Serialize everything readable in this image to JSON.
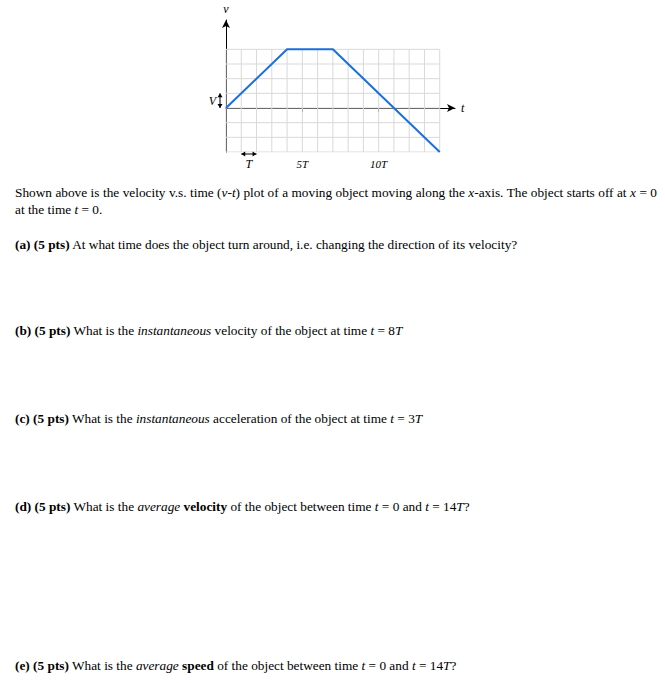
{
  "chart_data": {
    "type": "line",
    "x": [
      0,
      4,
      7,
      11,
      14
    ],
    "values": [
      0,
      4,
      4,
      0,
      -3
    ],
    "color": "#1a6fdf",
    "x_label": "t",
    "y_label": "v",
    "xlim": [
      0,
      15
    ],
    "ylim": [
      -3,
      6
    ],
    "xticks": [
      {
        "value": 5,
        "label": "5T"
      },
      {
        "value": 10,
        "label": "10T"
      }
    ],
    "tick_labels": "x",
    "grid": true,
    "grid_range": {
      "x": [
        0,
        14
      ],
      "y": [
        -3,
        4
      ]
    },
    "grid_step": 1,
    "unit_markers": [
      {
        "label": "V",
        "axis": "y",
        "from": 0,
        "to": 1
      },
      {
        "label": "T",
        "axis": "x",
        "from": 1,
        "to": 2
      }
    ]
  },
  "document": {
    "intro": [
      {
        "text": "Shown above is the velocity v.s. time ("
      },
      {
        "text": "v",
        "style": "math"
      },
      {
        "text": "-"
      },
      {
        "text": "t",
        "style": "math"
      },
      {
        "text": ") plot of a moving object moving along the "
      },
      {
        "text": "x",
        "style": "math"
      },
      {
        "text": "-axis. The object starts off at "
      },
      {
        "text": "x",
        "style": "math"
      },
      {
        "text": " = 0 at the time "
      },
      {
        "text": "t",
        "style": "math"
      },
      {
        "text": " = 0."
      }
    ],
    "questions": [
      {
        "label": "(a) (5 pts)",
        "text": [
          {
            "text": "At what time does the object turn around, i.e. changing the direction of its velocity?"
          }
        ]
      },
      {
        "label": "(b) (5 pts)",
        "text": [
          {
            "text": "What is the "
          },
          {
            "text": "instantaneous",
            "style": "italic"
          },
          {
            "text": " velocity of the object at time "
          },
          {
            "text": "t",
            "style": "math"
          },
          {
            "text": " = 8"
          },
          {
            "text": "T",
            "style": "math"
          }
        ]
      },
      {
        "label": "(c) (5 pts)",
        "text": [
          {
            "text": "What is the "
          },
          {
            "text": "instantaneous",
            "style": "italic"
          },
          {
            "text": " acceleration of the object at time "
          },
          {
            "text": "t",
            "style": "math"
          },
          {
            "text": " = 3"
          },
          {
            "text": "T",
            "style": "math"
          }
        ]
      },
      {
        "label": "(d) (5 pts)",
        "text": [
          {
            "text": "What is the "
          },
          {
            "text": "average",
            "style": "italic"
          },
          {
            "text": " "
          },
          {
            "text": "velocity",
            "style": "bold"
          },
          {
            "text": " of the object between time "
          },
          {
            "text": "t",
            "style": "math"
          },
          {
            "text": " = 0 and "
          },
          {
            "text": "t",
            "style": "math"
          },
          {
            "text": " = 14"
          },
          {
            "text": "T",
            "style": "math"
          },
          {
            "text": "?"
          }
        ]
      },
      {
        "label": "(e) (5 pts)",
        "text": [
          {
            "text": "What is the "
          },
          {
            "text": "average",
            "style": "italic"
          },
          {
            "text": " "
          },
          {
            "text": "speed",
            "style": "bold"
          },
          {
            "text": " of the object between time "
          },
          {
            "text": "t",
            "style": "math"
          },
          {
            "text": " = 0 and "
          },
          {
            "text": "t",
            "style": "math"
          },
          {
            "text": " = 14"
          },
          {
            "text": "T",
            "style": "math"
          },
          {
            "text": "?"
          }
        ]
      }
    ]
  }
}
